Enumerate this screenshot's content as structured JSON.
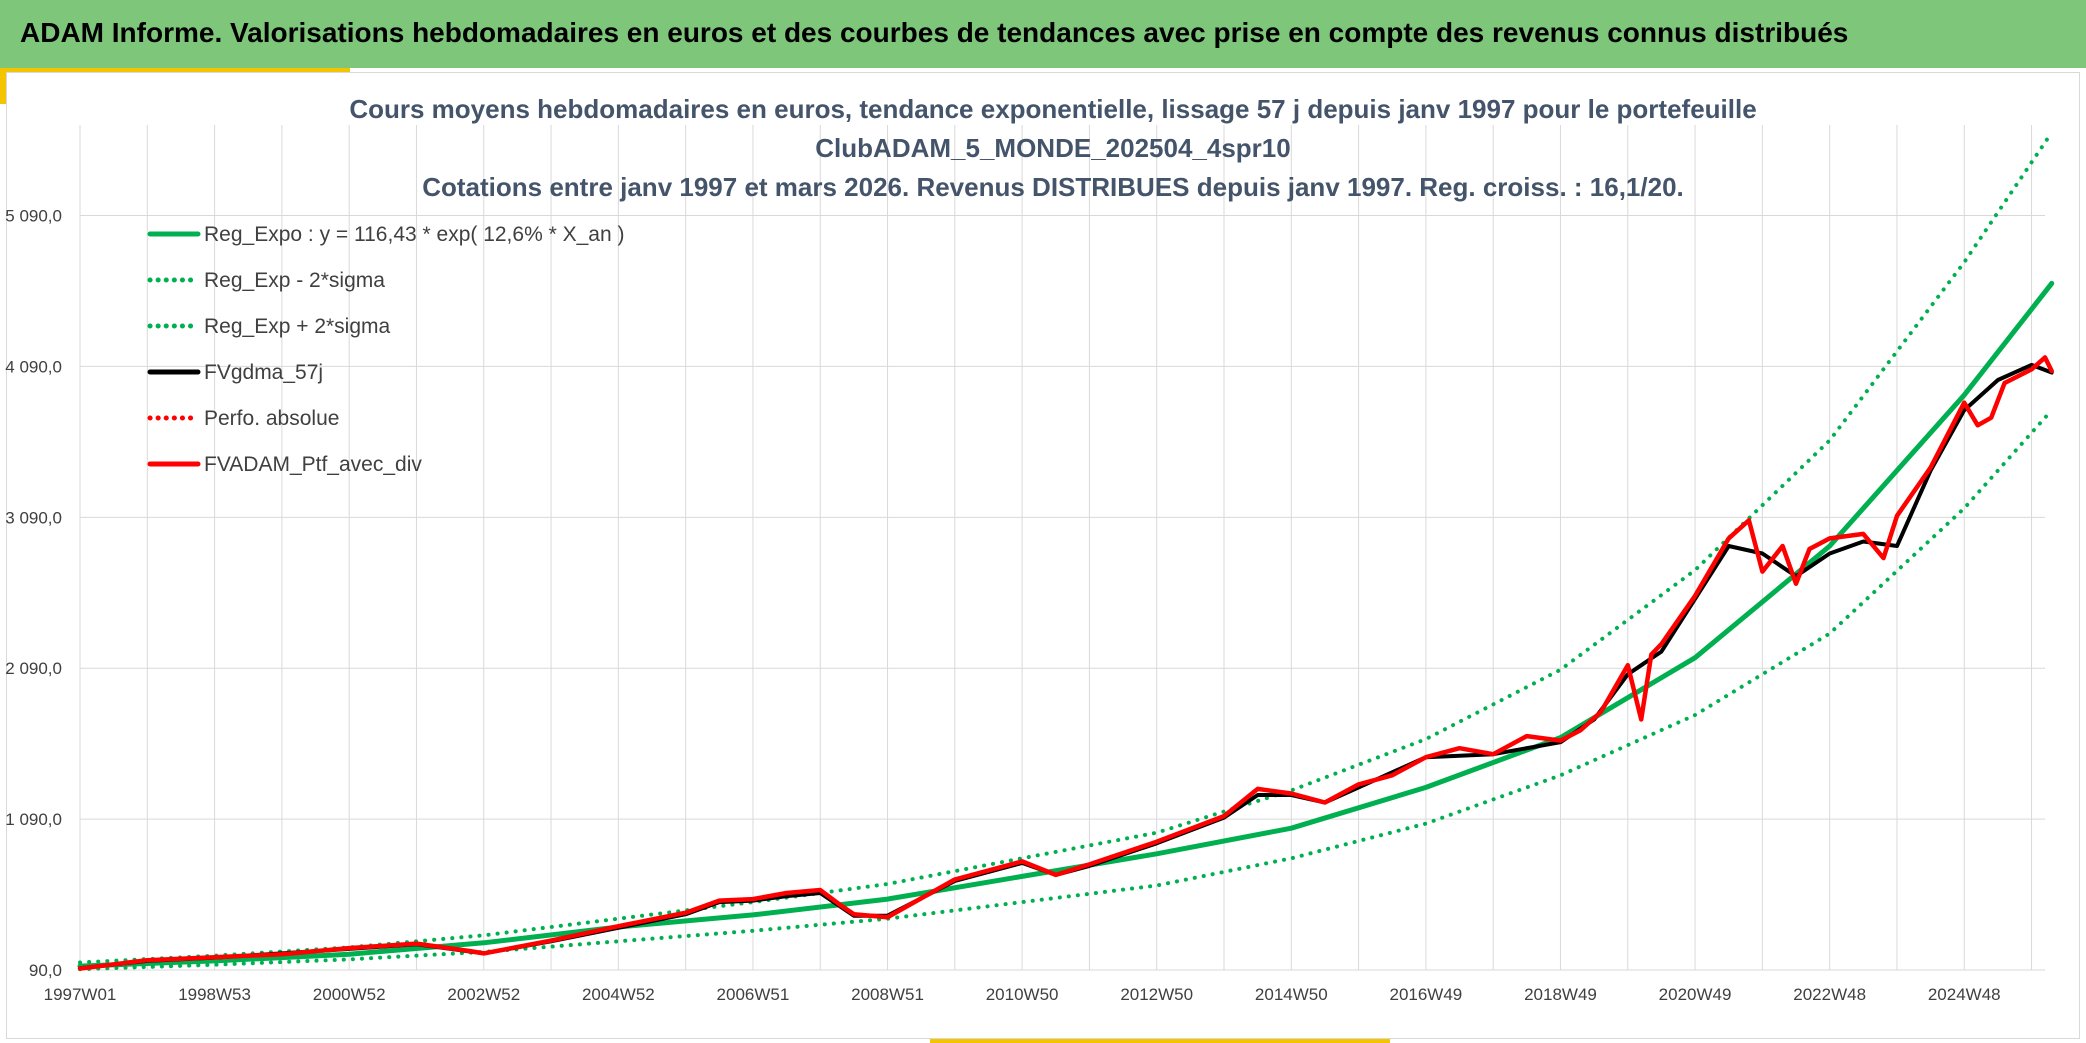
{
  "header": {
    "title": "ADAM Informe. Valorisations hebdomadaires en euros et des courbes de tendances avec prise en compte des revenus connus distribués"
  },
  "colors": {
    "header_bg": "#7dc67a",
    "accent_yellow": "#f5c400",
    "green": "#00b050",
    "red": "#ff0000",
    "black": "#000000",
    "title_text": "#44546a"
  },
  "chart_data": {
    "type": "line",
    "title": [
      "Cours moyens hebdomadaires en euros, tendance exponentielle, lissage 57 j depuis janv 1997 pour le portefeuille",
      "ClubADAM_5_MONDE_202504_4spr10",
      "Cotations entre janv 1997 et mars 2026. Revenus DISTRIBUES depuis janv 1997. Reg. croiss. : 16,1/20."
    ],
    "xlabel": "",
    "ylabel": "",
    "x_range": [
      1997.0,
      2026.2
    ],
    "ylim": [
      90,
      5690
    ],
    "x_ticks": [
      {
        "label": "1997W01",
        "x": 1997.0
      },
      {
        "label": "1998W53",
        "x": 1999.0
      },
      {
        "label": "2000W52",
        "x": 2001.0
      },
      {
        "label": "2002W52",
        "x": 2003.0
      },
      {
        "label": "2004W52",
        "x": 2005.0
      },
      {
        "label": "2006W51",
        "x": 2007.0
      },
      {
        "label": "2008W51",
        "x": 2009.0
      },
      {
        "label": "2010W50",
        "x": 2011.0
      },
      {
        "label": "2012W50",
        "x": 2013.0
      },
      {
        "label": "2014W50",
        "x": 2015.0
      },
      {
        "label": "2016W49",
        "x": 2017.0
      },
      {
        "label": "2018W49",
        "x": 2019.0
      },
      {
        "label": "2020W49",
        "x": 2021.0
      },
      {
        "label": "2022W48",
        "x": 2023.0
      },
      {
        "label": "2024W48",
        "x": 2025.0
      }
    ],
    "y_ticks": [
      {
        "label": "90,0",
        "value": 90
      },
      {
        "label": "1 090,0",
        "value": 1090
      },
      {
        "label": "2 090,0",
        "value": 2090
      },
      {
        "label": "3 090,0",
        "value": 3090
      },
      {
        "label": "4 090,0",
        "value": 4090
      },
      {
        "label": "5 090,0",
        "value": 5090
      }
    ],
    "grid": true,
    "legend_position": "top-left",
    "legend": [
      {
        "label": "Reg_Expo : y = 116,43 * exp( 12,6% *  X_an )",
        "color": "#00b050",
        "style": "solid"
      },
      {
        "label": "Reg_Exp - 2*sigma",
        "color": "#00b050",
        "style": "dotted"
      },
      {
        "label": "Reg_Exp + 2*sigma",
        "color": "#00b050",
        "style": "dotted"
      },
      {
        "label": "FVgdma_57j",
        "color": "#000000",
        "style": "solid"
      },
      {
        "label": "Perfo. absolue",
        "color": "#ff0000",
        "style": "dotted"
      },
      {
        "label": "FVADAM_Ptf_avec_div",
        "color": "#ff0000",
        "style": "solid"
      }
    ],
    "series": [
      {
        "name": "Reg_Expo : y = 116,43 * exp( 12,6% *  X_an )",
        "color": "#00b050",
        "style": "solid",
        "x": [
          1997.0,
          1999.0,
          2001.0,
          2003.0,
          2005.0,
          2007.0,
          2009.0,
          2011.0,
          2013.0,
          2015.0,
          2017.0,
          2019.0,
          2021.0,
          2023.0,
          2025.0,
          2026.3
        ],
        "y": [
          116,
          150,
          195,
          270,
          375,
          455,
          560,
          710,
          860,
          1030,
          1300,
          1630,
          2160,
          2900,
          3900,
          4640
        ]
      },
      {
        "name": "Reg_Exp - 2*sigma",
        "color": "#00b050",
        "style": "dotted",
        "x": [
          1997.0,
          1999.0,
          2001.0,
          2003.0,
          2005.0,
          2007.0,
          2009.0,
          2011.0,
          2013.0,
          2015.0,
          2017.0,
          2019.0,
          2021.0,
          2023.0,
          2025.0,
          2026.3
        ],
        "y": [
          95,
          125,
          160,
          210,
          280,
          350,
          430,
          540,
          650,
          830,
          1060,
          1380,
          1780,
          2320,
          3150,
          3800
        ]
      },
      {
        "name": "Reg_Exp + 2*sigma",
        "color": "#00b050",
        "style": "dotted",
        "x": [
          1997.0,
          1999.0,
          2001.0,
          2003.0,
          2005.0,
          2007.0,
          2009.0,
          2011.0,
          2013.0,
          2015.0,
          2017.0,
          2019.0,
          2021.0,
          2023.0,
          2025.0,
          2026.3
        ],
        "y": [
          140,
          185,
          240,
          320,
          430,
          540,
          660,
          830,
          1000,
          1280,
          1620,
          2080,
          2740,
          3600,
          4780,
          5640
        ]
      },
      {
        "name": "FVgdma_57j",
        "color": "#000000",
        "style": "solid",
        "x": [
          1997.0,
          1998.0,
          1999.0,
          2000.0,
          2001.0,
          2002.0,
          2003.0,
          2004.0,
          2005.0,
          2006.0,
          2006.5,
          2007.0,
          2007.5,
          2008.0,
          2008.5,
          2009.0,
          2010.0,
          2011.0,
          2011.5,
          2012.0,
          2013.0,
          2014.0,
          2014.5,
          2015.0,
          2015.5,
          2016.0,
          2017.0,
          2018.0,
          2019.0,
          2019.5,
          2020.0,
          2020.5,
          2021.0,
          2021.5,
          2022.0,
          2022.5,
          2023.0,
          2023.5,
          2024.0,
          2024.5,
          2025.0,
          2025.5,
          2026.0,
          2026.3
        ],
        "y": [
          102,
          150,
          172,
          200,
          230,
          260,
          200,
          280,
          370,
          460,
          540,
          550,
          580,
          600,
          450,
          450,
          680,
          800,
          720,
          780,
          930,
          1100,
          1250,
          1250,
          1200,
          1300,
          1500,
          1520,
          1600,
          1750,
          2050,
          2200,
          2550,
          2900,
          2850,
          2700,
          2850,
          2930,
          2900,
          3400,
          3800,
          4000,
          4100,
          4050
        ]
      },
      {
        "name": "FVADAM_Ptf_avec_div",
        "color": "#ff0000",
        "style": "solid",
        "x": [
          1997.0,
          1998.0,
          1999.0,
          2000.0,
          2001.0,
          2002.0,
          2002.8,
          2003.0,
          2004.0,
          2005.0,
          2006.0,
          2006.5,
          2007.0,
          2007.5,
          2008.0,
          2008.3,
          2008.5,
          2009.0,
          2010.0,
          2011.0,
          2011.5,
          2012.0,
          2013.0,
          2014.0,
          2014.5,
          2015.0,
          2015.5,
          2016.0,
          2016.5,
          2017.0,
          2017.5,
          2018.0,
          2018.5,
          2019.0,
          2019.3,
          2019.6,
          2020.0,
          2020.2,
          2020.35,
          2020.5,
          2021.0,
          2021.5,
          2021.8,
          2022.0,
          2022.3,
          2022.5,
          2022.7,
          2023.0,
          2023.5,
          2023.8,
          2024.0,
          2024.5,
          2025.0,
          2025.2,
          2025.4,
          2025.6,
          2026.0,
          2026.2,
          2026.3
        ],
        "y": [
          100,
          155,
          175,
          195,
          235,
          265,
          215,
          200,
          285,
          380,
          470,
          550,
          560,
          600,
          620,
          520,
          460,
          440,
          690,
          810,
          720,
          790,
          940,
          1110,
          1290,
          1260,
          1200,
          1320,
          1380,
          1500,
          1560,
          1520,
          1640,
          1610,
          1680,
          1800,
          2110,
          1750,
          2180,
          2250,
          2570,
          2950,
          3070,
          2730,
          2900,
          2650,
          2880,
          2950,
          2980,
          2820,
          3100,
          3420,
          3850,
          3700,
          3750,
          3980,
          4070,
          4150,
          4060
        ]
      }
    ]
  }
}
